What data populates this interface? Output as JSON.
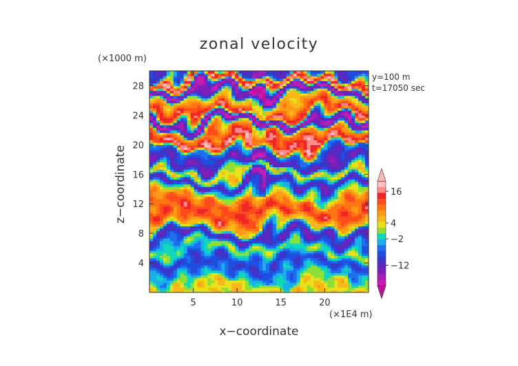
{
  "chart_data": {
    "type": "heatmap",
    "title": "zonal velocity",
    "xlabel": "x−coordinate",
    "ylabel": "z−coordinate",
    "x_unit": "(×1E4 m)",
    "y_unit": "(×1000 m)",
    "x_ticks": [
      5,
      10,
      15,
      20
    ],
    "y_ticks": [
      4,
      8,
      12,
      16,
      20,
      24,
      28
    ],
    "xlim": [
      0,
      25
    ],
    "ylim": [
      0,
      30
    ],
    "annotations": [
      "y=100 m",
      "t=17050 sec"
    ],
    "colorbar": {
      "labels": [
        {
          "text": "16",
          "value": 16
        },
        {
          "text": "4",
          "value": 4
        },
        {
          "text": "−2",
          "value": -2
        },
        {
          "text": "−12",
          "value": -12
        }
      ],
      "range": [
        -22,
        22
      ],
      "colors": [
        "#c0109a",
        "#cc1cb0",
        "#a81cb8",
        "#7f1fb8",
        "#5a28c0",
        "#3a36c8",
        "#1f4ee0",
        "#1e6ef0",
        "#19b0e8",
        "#10d8b8",
        "#8ee038",
        "#e8e21a",
        "#f8b81a",
        "#ff9a14",
        "#ff7414",
        "#ff4c1c",
        "#ee2626",
        "#ff8a8a",
        "#ffc0c0",
        "#ffb6b6"
      ]
    },
    "bands": [
      {
        "z": 0.8,
        "v": 4
      },
      {
        "z": 2.5,
        "v": -4
      },
      {
        "z": 4.2,
        "v": -9
      },
      {
        "z": 6.0,
        "v": 1
      },
      {
        "z": 7.8,
        "v": -12
      },
      {
        "z": 9.3,
        "v": 6
      },
      {
        "z": 10.8,
        "v": 13
      },
      {
        "z": 12.3,
        "v": 10
      },
      {
        "z": 13.6,
        "v": 0
      },
      {
        "z": 14.8,
        "v": -12
      },
      {
        "z": 16.2,
        "v": 4
      },
      {
        "z": 17.6,
        "v": -13
      },
      {
        "z": 19.0,
        "v": -6
      },
      {
        "z": 20.3,
        "v": 16
      },
      {
        "z": 21.7,
        "v": 10
      },
      {
        "z": 23.1,
        "v": -17
      },
      {
        "z": 24.5,
        "v": 14
      },
      {
        "z": 26.0,
        "v": 6
      },
      {
        "z": 27.4,
        "v": -17
      },
      {
        "z": 28.8,
        "v": 16
      },
      {
        "z": 30.0,
        "v": -10
      }
    ]
  }
}
